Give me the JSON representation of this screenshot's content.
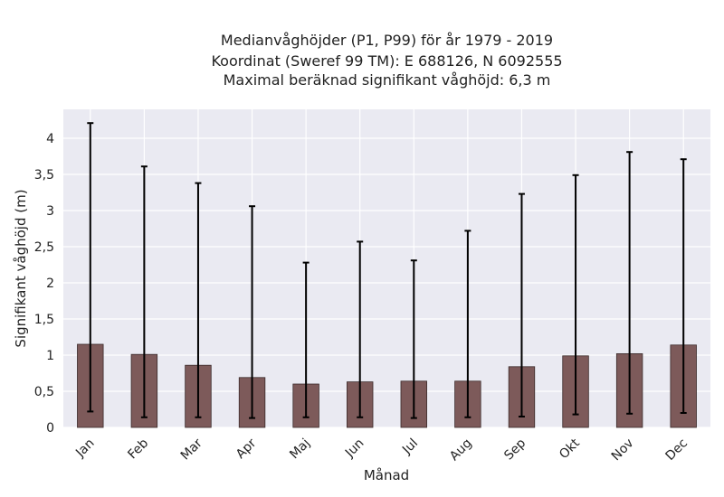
{
  "chart_data": {
    "type": "bar",
    "title_lines": [
      "Medianvåghöjder (P1, P99) för år 1979 - 2019",
      "Koordinat (Sweref 99 TM): E 688126, N 6092555",
      "Maximal beräknad signifikant våghöjd: 6,3 m"
    ],
    "xlabel": "Månad",
    "ylabel": "Signifikant våghöjd (m)",
    "categories": [
      "Jan",
      "Feb",
      "Mar",
      "Apr",
      "Maj",
      "Jun",
      "Jul",
      "Aug",
      "Sep",
      "Okt",
      "Nov",
      "Dec"
    ],
    "series": [
      {
        "values": [
          1.15,
          1.01,
          0.86,
          0.69,
          0.6,
          0.63,
          0.64,
          0.64,
          0.84,
          0.99,
          1.02,
          1.14
        ],
        "p1": [
          0.22,
          0.14,
          0.14,
          0.13,
          0.14,
          0.14,
          0.13,
          0.14,
          0.15,
          0.18,
          0.19,
          0.2
        ],
        "p99": [
          4.21,
          3.61,
          3.38,
          3.06,
          2.28,
          2.57,
          2.31,
          2.72,
          3.23,
          3.49,
          3.81,
          3.71
        ]
      }
    ],
    "ylim": [
      0,
      4.4
    ],
    "yticks": [
      0,
      0.5,
      1,
      1.5,
      2,
      2.5,
      3,
      3.5,
      4
    ],
    "ytick_labels": [
      "0",
      "0,5",
      "1",
      "1,5",
      "2",
      "2,5",
      "3",
      "3,5",
      "4"
    ],
    "grid": true,
    "colors": {
      "bar": "#7d5a5a",
      "bar_edge": "#3a2a2a",
      "errorbar": "#000000",
      "plot_bg": "#eaeaf2",
      "grid": "#ffffff"
    }
  }
}
